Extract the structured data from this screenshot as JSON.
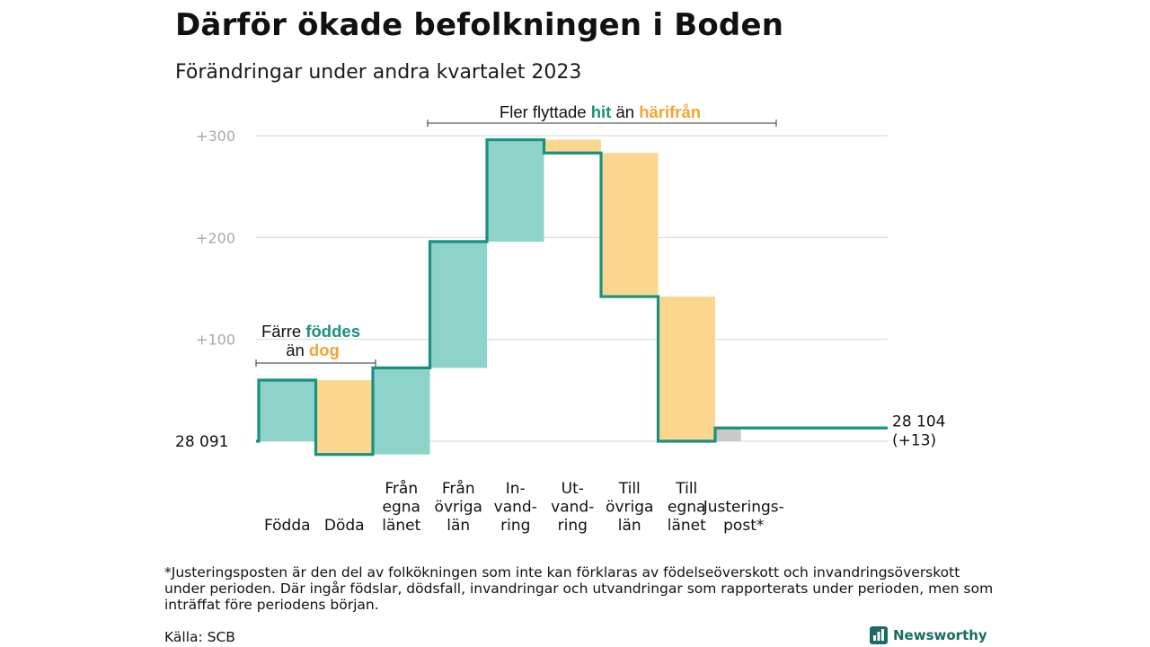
{
  "title": "Därför ökade befolkningen i Boden",
  "subtitle": "Förändringar under andra kvartalet 2023",
  "footnote": "*Justeringsposten är den del av folkökningen som inte kan förklaras av födelseöverskott och invandringsöverskott under perioden. Där ingår födslar, dödsfall, invandringar och utvandringar som rapporterats under perioden, men som inträffat före periodens början.",
  "source": "Källa: SCB",
  "logo": {
    "text": "Newsworthy",
    "icon": "bar-chart-icon"
  },
  "colors": {
    "increase": "#8dd3ca",
    "decrease": "#fbd68e",
    "adjustment": "#c9c9c9",
    "line": "#1a9080",
    "accent_teal": "#1a9080",
    "accent_orange": "#f2a531",
    "grid": "#dddddd",
    "tick": "#a8a8a8"
  },
  "annotations": {
    "births": {
      "line1_prefix": "Färre ",
      "line1_highlight": "föddes",
      "line2_prefix": "än ",
      "line2_highlight": "dog"
    },
    "migration": {
      "prefix": "Fler flyttade ",
      "highlight1": "hit",
      "middle": " än ",
      "highlight2": "härifrån"
    }
  },
  "chart_data": {
    "type": "waterfall",
    "title": "Därför ökade befolkningen i Boden",
    "subtitle": "Förändringar under andra kvartalet 2023",
    "start_value": 28091,
    "start_label": "28  091",
    "end_value": 28104,
    "end_label": "28 104",
    "end_change_label": "(+13)",
    "y_ticks": [
      {
        "value": 300,
        "label": "+300"
      },
      {
        "value": 200,
        "label": "+200"
      },
      {
        "value": 100,
        "label": "+100"
      }
    ],
    "ylim": [
      -25,
      320
    ],
    "grid": true,
    "categories": [
      {
        "label": [
          "Födda"
        ],
        "change": 60,
        "type": "increase"
      },
      {
        "label": [
          "Döda"
        ],
        "change": -73,
        "type": "decrease"
      },
      {
        "label": [
          "Från",
          "egna",
          "länet"
        ],
        "change": 85,
        "type": "increase"
      },
      {
        "label": [
          "Från",
          "övriga",
          "län"
        ],
        "change": 124,
        "type": "increase"
      },
      {
        "label": [
          "In-",
          "vand-",
          "ring"
        ],
        "change": 100,
        "type": "increase"
      },
      {
        "label": [
          "Ut-",
          "vand-",
          "ring"
        ],
        "change": -13,
        "type": "decrease"
      },
      {
        "label": [
          "Till",
          "övriga",
          "län"
        ],
        "change": -141,
        "type": "decrease"
      },
      {
        "label": [
          "Till",
          "egna",
          "länet"
        ],
        "change": -142,
        "type": "decrease"
      },
      {
        "label": [
          "Justerings-",
          "post*"
        ],
        "change": 13,
        "type": "adjustment"
      }
    ]
  }
}
